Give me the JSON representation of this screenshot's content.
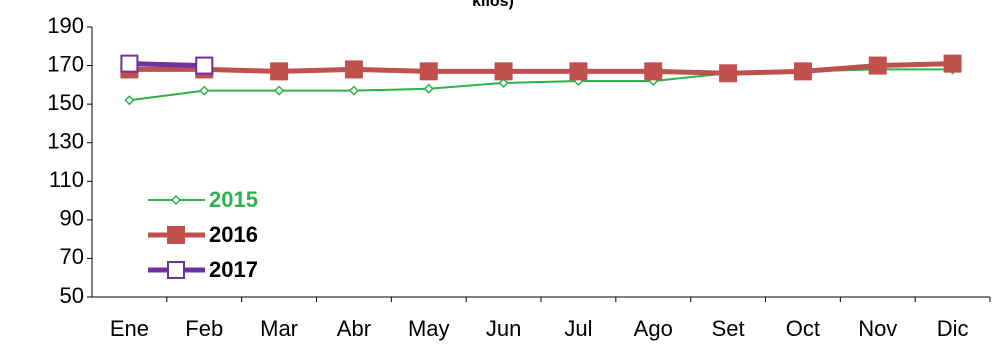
{
  "chart_data": {
    "type": "line",
    "title": "kilos)",
    "categories": [
      "Ene",
      "Feb",
      "Mar",
      "Abr",
      "May",
      "Jun",
      "Jul",
      "Ago",
      "Set",
      "Oct",
      "Nov",
      "Dic"
    ],
    "series": [
      {
        "name": "2015",
        "color": "#2db34a",
        "values": [
          152,
          157,
          157,
          157,
          158,
          161,
          162,
          162,
          166,
          167,
          168,
          168
        ]
      },
      {
        "name": "2016",
        "color": "#c0504d",
        "values": [
          168,
          168,
          167,
          168,
          167,
          167,
          167,
          167,
          166,
          167,
          170,
          171
        ]
      },
      {
        "name": "2017",
        "color": "#7030a0",
        "values": [
          171,
          170,
          null,
          null,
          null,
          null,
          null,
          null,
          null,
          null,
          null,
          null
        ]
      }
    ],
    "ylim": [
      50,
      190
    ],
    "yticks": [
      50,
      70,
      90,
      110,
      130,
      150,
      170,
      190
    ],
    "grid": false
  }
}
